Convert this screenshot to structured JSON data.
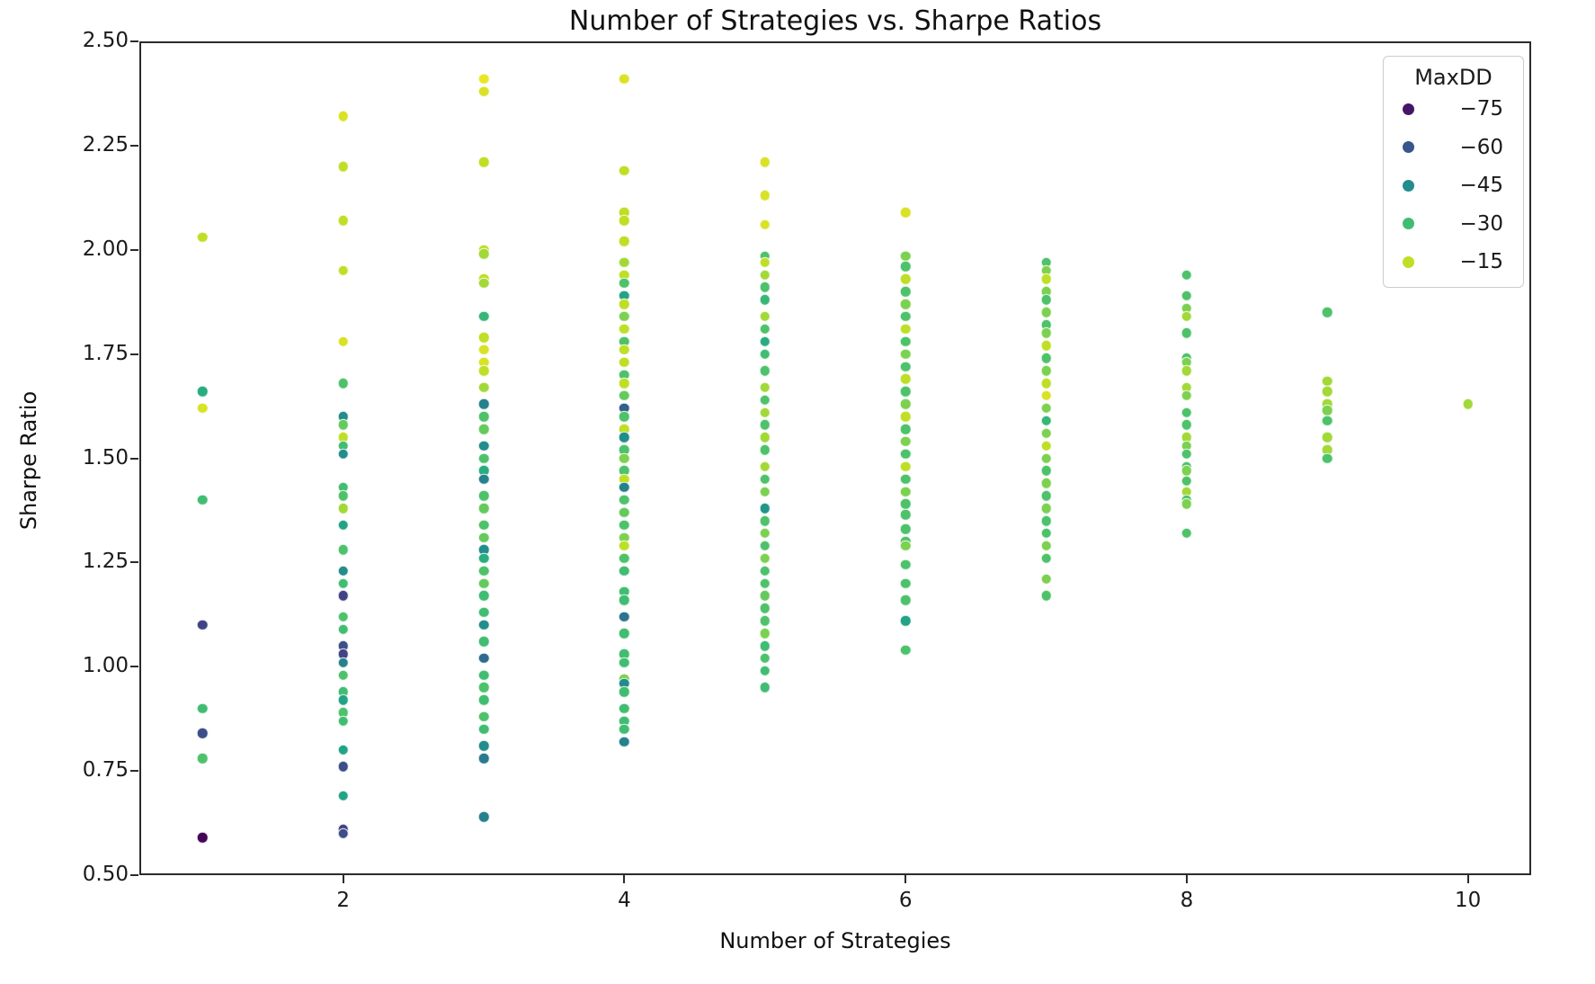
{
  "figure": {
    "background": "#ffffff",
    "frame_color": "#2b2b2b",
    "text_color": "#1a1a1a"
  },
  "chart_data": {
    "type": "scatter",
    "title": "Number of Strategies vs. Sharpe Ratios",
    "xlabel": "Number of Strategies",
    "ylabel": "Sharpe Ratio",
    "xlim": [
      0.55,
      10.45
    ],
    "ylim": [
      0.5,
      2.5
    ],
    "grid": false,
    "xticks": [
      {
        "v": 2,
        "label": "2"
      },
      {
        "v": 4,
        "label": "4"
      },
      {
        "v": 6,
        "label": "6"
      },
      {
        "v": 8,
        "label": "8"
      },
      {
        "v": 10,
        "label": "10"
      }
    ],
    "yticks": [
      {
        "v": 0.5,
        "label": "0.50"
      },
      {
        "v": 0.75,
        "label": "0.75"
      },
      {
        "v": 1.0,
        "label": "1.00"
      },
      {
        "v": 1.25,
        "label": "1.25"
      },
      {
        "v": 1.5,
        "label": "1.50"
      },
      {
        "v": 1.75,
        "label": "1.75"
      },
      {
        "v": 2.0,
        "label": "2.00"
      },
      {
        "v": 2.25,
        "label": "2.25"
      },
      {
        "v": 2.5,
        "label": "2.50"
      }
    ],
    "legend": {
      "title": "MaxDD",
      "position": "upper right",
      "entries": [
        {
          "label": "−75",
          "dd": -75
        },
        {
          "label": "−60",
          "dd": -60
        },
        {
          "label": "−45",
          "dd": -45
        },
        {
          "label": "−30",
          "dd": -30
        },
        {
          "label": "−15",
          "dd": -15
        }
      ]
    },
    "colormap": {
      "name": "viridis",
      "norm_range": [
        -79,
        -8
      ],
      "stops": [
        "#440154",
        "#482475",
        "#414487",
        "#355f8d",
        "#2a788e",
        "#21918c",
        "#22a884",
        "#44bf70",
        "#7ad151",
        "#bddf26",
        "#fde725"
      ]
    },
    "series_note": "points are [num_strategies, sharpe_ratio, max_drawdown]",
    "points": [
      [
        1,
        2.03,
        -15
      ],
      [
        1,
        1.66,
        -35
      ],
      [
        1,
        1.62,
        -12
      ],
      [
        1,
        1.4,
        -30
      ],
      [
        1,
        1.1,
        -65
      ],
      [
        1,
        0.9,
        -30
      ],
      [
        1,
        0.84,
        -62
      ],
      [
        1,
        0.78,
        -28
      ],
      [
        1,
        0.59,
        -78
      ],
      [
        2,
        2.32,
        -12
      ],
      [
        2,
        2.2,
        -15
      ],
      [
        2,
        2.07,
        -15
      ],
      [
        2,
        1.95,
        -15
      ],
      [
        2,
        1.78,
        -12
      ],
      [
        2,
        1.68,
        -28
      ],
      [
        2,
        1.6,
        -45
      ],
      [
        2,
        1.58,
        -25
      ],
      [
        2,
        1.55,
        -15
      ],
      [
        2,
        1.53,
        -30
      ],
      [
        2,
        1.51,
        -45
      ],
      [
        2,
        1.43,
        -30
      ],
      [
        2,
        1.41,
        -28
      ],
      [
        2,
        1.38,
        -18
      ],
      [
        2,
        1.34,
        -38
      ],
      [
        2,
        1.28,
        -28
      ],
      [
        2,
        1.23,
        -45
      ],
      [
        2,
        1.2,
        -30
      ],
      [
        2,
        1.17,
        -65
      ],
      [
        2,
        1.12,
        -28
      ],
      [
        2,
        1.09,
        -30
      ],
      [
        2,
        1.05,
        -62
      ],
      [
        2,
        1.03,
        -65
      ],
      [
        2,
        1.01,
        -48
      ],
      [
        2,
        0.98,
        -28
      ],
      [
        2,
        0.94,
        -30
      ],
      [
        2,
        0.92,
        -38
      ],
      [
        2,
        0.89,
        -28
      ],
      [
        2,
        0.87,
        -30
      ],
      [
        2,
        0.8,
        -38
      ],
      [
        2,
        0.76,
        -62
      ],
      [
        2,
        0.69,
        -38
      ],
      [
        2,
        0.61,
        -65
      ],
      [
        2,
        0.6,
        -62
      ],
      [
        3,
        2.41,
        -10
      ],
      [
        3,
        2.38,
        -12
      ],
      [
        3,
        2.21,
        -15
      ],
      [
        3,
        2.0,
        -15
      ],
      [
        3,
        1.99,
        -18
      ],
      [
        3,
        1.93,
        -15
      ],
      [
        3,
        1.92,
        -18
      ],
      [
        3,
        1.84,
        -32
      ],
      [
        3,
        1.79,
        -15
      ],
      [
        3,
        1.76,
        -12
      ],
      [
        3,
        1.73,
        -12
      ],
      [
        3,
        1.71,
        -15
      ],
      [
        3,
        1.67,
        -18
      ],
      [
        3,
        1.63,
        -48
      ],
      [
        3,
        1.6,
        -28
      ],
      [
        3,
        1.57,
        -25
      ],
      [
        3,
        1.53,
        -45
      ],
      [
        3,
        1.5,
        -28
      ],
      [
        3,
        1.47,
        -35
      ],
      [
        3,
        1.45,
        -48
      ],
      [
        3,
        1.41,
        -28
      ],
      [
        3,
        1.38,
        -25
      ],
      [
        3,
        1.34,
        -28
      ],
      [
        3,
        1.31,
        -25
      ],
      [
        3,
        1.28,
        -45
      ],
      [
        3,
        1.26,
        -35
      ],
      [
        3,
        1.23,
        -28
      ],
      [
        3,
        1.2,
        -25
      ],
      [
        3,
        1.17,
        -30
      ],
      [
        3,
        1.13,
        -30
      ],
      [
        3,
        1.1,
        -45
      ],
      [
        3,
        1.06,
        -30
      ],
      [
        3,
        1.02,
        -55
      ],
      [
        3,
        0.98,
        -30
      ],
      [
        3,
        0.95,
        -28
      ],
      [
        3,
        0.92,
        -30
      ],
      [
        3,
        0.88,
        -28
      ],
      [
        3,
        0.85,
        -30
      ],
      [
        3,
        0.81,
        -45
      ],
      [
        3,
        0.78,
        -50
      ],
      [
        3,
        0.64,
        -48
      ],
      [
        4,
        2.41,
        -12
      ],
      [
        4,
        2.19,
        -15
      ],
      [
        4,
        2.09,
        -15
      ],
      [
        4,
        2.07,
        -15
      ],
      [
        4,
        2.02,
        -15
      ],
      [
        4,
        1.97,
        -18
      ],
      [
        4,
        1.94,
        -15
      ],
      [
        4,
        1.92,
        -28
      ],
      [
        4,
        1.89,
        -38
      ],
      [
        4,
        1.87,
        -15
      ],
      [
        4,
        1.84,
        -22
      ],
      [
        4,
        1.81,
        -15
      ],
      [
        4,
        1.78,
        -28
      ],
      [
        4,
        1.76,
        -15
      ],
      [
        4,
        1.73,
        -15
      ],
      [
        4,
        1.7,
        -28
      ],
      [
        4,
        1.68,
        -15
      ],
      [
        4,
        1.65,
        -25
      ],
      [
        4,
        1.62,
        -58
      ],
      [
        4,
        1.6,
        -28
      ],
      [
        4,
        1.57,
        -15
      ],
      [
        4,
        1.55,
        -45
      ],
      [
        4,
        1.52,
        -28
      ],
      [
        4,
        1.5,
        -22
      ],
      [
        4,
        1.47,
        -28
      ],
      [
        4,
        1.45,
        -15
      ],
      [
        4,
        1.43,
        -48
      ],
      [
        4,
        1.4,
        -28
      ],
      [
        4,
        1.37,
        -25
      ],
      [
        4,
        1.34,
        -28
      ],
      [
        4,
        1.31,
        -22
      ],
      [
        4,
        1.29,
        -15
      ],
      [
        4,
        1.26,
        -28
      ],
      [
        4,
        1.23,
        -30
      ],
      [
        4,
        1.18,
        -30
      ],
      [
        4,
        1.16,
        -30
      ],
      [
        4,
        1.12,
        -52
      ],
      [
        4,
        1.08,
        -30
      ],
      [
        4,
        1.03,
        -30
      ],
      [
        4,
        1.01,
        -30
      ],
      [
        4,
        0.97,
        -22
      ],
      [
        4,
        0.96,
        -45
      ],
      [
        4,
        0.94,
        -30
      ],
      [
        4,
        0.9,
        -30
      ],
      [
        4,
        0.87,
        -30
      ],
      [
        4,
        0.85,
        -30
      ],
      [
        4,
        0.82,
        -48
      ],
      [
        5,
        2.21,
        -12
      ],
      [
        5,
        2.13,
        -12
      ],
      [
        5,
        2.06,
        -12
      ],
      [
        5,
        1.985,
        -28
      ],
      [
        5,
        1.97,
        -15
      ],
      [
        5,
        1.94,
        -18
      ],
      [
        5,
        1.91,
        -28
      ],
      [
        5,
        1.88,
        -32
      ],
      [
        5,
        1.84,
        -18
      ],
      [
        5,
        1.81,
        -28
      ],
      [
        5,
        1.78,
        -35
      ],
      [
        5,
        1.75,
        -30
      ],
      [
        5,
        1.71,
        -28
      ],
      [
        5,
        1.67,
        -18
      ],
      [
        5,
        1.64,
        -28
      ],
      [
        5,
        1.61,
        -18
      ],
      [
        5,
        1.58,
        -28
      ],
      [
        5,
        1.55,
        -18
      ],
      [
        5,
        1.52,
        -28
      ],
      [
        5,
        1.48,
        -18
      ],
      [
        5,
        1.45,
        -28
      ],
      [
        5,
        1.42,
        -22
      ],
      [
        5,
        1.38,
        -42
      ],
      [
        5,
        1.35,
        -28
      ],
      [
        5,
        1.32,
        -22
      ],
      [
        5,
        1.29,
        -28
      ],
      [
        5,
        1.26,
        -22
      ],
      [
        5,
        1.23,
        -28
      ],
      [
        5,
        1.2,
        -28
      ],
      [
        5,
        1.17,
        -25
      ],
      [
        5,
        1.14,
        -28
      ],
      [
        5,
        1.11,
        -28
      ],
      [
        5,
        1.08,
        -22
      ],
      [
        5,
        1.05,
        -30
      ],
      [
        5,
        1.02,
        -28
      ],
      [
        5,
        0.99,
        -30
      ],
      [
        5,
        0.95,
        -30
      ],
      [
        6,
        2.09,
        -12
      ],
      [
        6,
        1.985,
        -22
      ],
      [
        6,
        1.96,
        -28
      ],
      [
        6,
        1.93,
        -15
      ],
      [
        6,
        1.9,
        -28
      ],
      [
        6,
        1.87,
        -22
      ],
      [
        6,
        1.84,
        -28
      ],
      [
        6,
        1.81,
        -15
      ],
      [
        6,
        1.78,
        -28
      ],
      [
        6,
        1.75,
        -22
      ],
      [
        6,
        1.72,
        -28
      ],
      [
        6,
        1.69,
        -15
      ],
      [
        6,
        1.66,
        -28
      ],
      [
        6,
        1.63,
        -22
      ],
      [
        6,
        1.6,
        -15
      ],
      [
        6,
        1.57,
        -28
      ],
      [
        6,
        1.54,
        -22
      ],
      [
        6,
        1.51,
        -28
      ],
      [
        6,
        1.48,
        -15
      ],
      [
        6,
        1.45,
        -28
      ],
      [
        6,
        1.42,
        -22
      ],
      [
        6,
        1.39,
        -28
      ],
      [
        6,
        1.365,
        -28
      ],
      [
        6,
        1.33,
        -28
      ],
      [
        6,
        1.3,
        -28
      ],
      [
        6,
        1.29,
        -22
      ],
      [
        6,
        1.245,
        -28
      ],
      [
        6,
        1.2,
        -28
      ],
      [
        6,
        1.16,
        -28
      ],
      [
        6,
        1.11,
        -38
      ],
      [
        6,
        1.04,
        -28
      ],
      [
        7,
        1.97,
        -28
      ],
      [
        7,
        1.95,
        -22
      ],
      [
        7,
        1.93,
        -15
      ],
      [
        7,
        1.9,
        -22
      ],
      [
        7,
        1.88,
        -28
      ],
      [
        7,
        1.85,
        -22
      ],
      [
        7,
        1.82,
        -28
      ],
      [
        7,
        1.8,
        -22
      ],
      [
        7,
        1.77,
        -15
      ],
      [
        7,
        1.74,
        -28
      ],
      [
        7,
        1.71,
        -22
      ],
      [
        7,
        1.68,
        -15
      ],
      [
        7,
        1.65,
        -12
      ],
      [
        7,
        1.62,
        -22
      ],
      [
        7,
        1.59,
        -32
      ],
      [
        7,
        1.56,
        -22
      ],
      [
        7,
        1.53,
        -15
      ],
      [
        7,
        1.5,
        -22
      ],
      [
        7,
        1.47,
        -28
      ],
      [
        7,
        1.44,
        -22
      ],
      [
        7,
        1.41,
        -28
      ],
      [
        7,
        1.38,
        -22
      ],
      [
        7,
        1.35,
        -28
      ],
      [
        7,
        1.32,
        -28
      ],
      [
        7,
        1.29,
        -22
      ],
      [
        7,
        1.26,
        -28
      ],
      [
        7,
        1.21,
        -22
      ],
      [
        7,
        1.17,
        -28
      ],
      [
        8,
        1.94,
        -28
      ],
      [
        8,
        1.89,
        -28
      ],
      [
        8,
        1.86,
        -22
      ],
      [
        8,
        1.84,
        -18
      ],
      [
        8,
        1.8,
        -28
      ],
      [
        8,
        1.74,
        -28
      ],
      [
        8,
        1.73,
        -22
      ],
      [
        8,
        1.71,
        -18
      ],
      [
        8,
        1.67,
        -18
      ],
      [
        8,
        1.65,
        -22
      ],
      [
        8,
        1.61,
        -28
      ],
      [
        8,
        1.58,
        -28
      ],
      [
        8,
        1.55,
        -18
      ],
      [
        8,
        1.53,
        -22
      ],
      [
        8,
        1.51,
        -28
      ],
      [
        8,
        1.48,
        -28
      ],
      [
        8,
        1.47,
        -22
      ],
      [
        8,
        1.445,
        -28
      ],
      [
        8,
        1.42,
        -18
      ],
      [
        8,
        1.4,
        -28
      ],
      [
        8,
        1.39,
        -22
      ],
      [
        8,
        1.32,
        -28
      ],
      [
        9,
        1.85,
        -28
      ],
      [
        9,
        1.685,
        -18
      ],
      [
        9,
        1.66,
        -18
      ],
      [
        9,
        1.63,
        -18
      ],
      [
        9,
        1.615,
        -22
      ],
      [
        9,
        1.59,
        -28
      ],
      [
        9,
        1.55,
        -18
      ],
      [
        9,
        1.52,
        -18
      ],
      [
        9,
        1.5,
        -28
      ],
      [
        10,
        1.63,
        -18
      ]
    ]
  }
}
